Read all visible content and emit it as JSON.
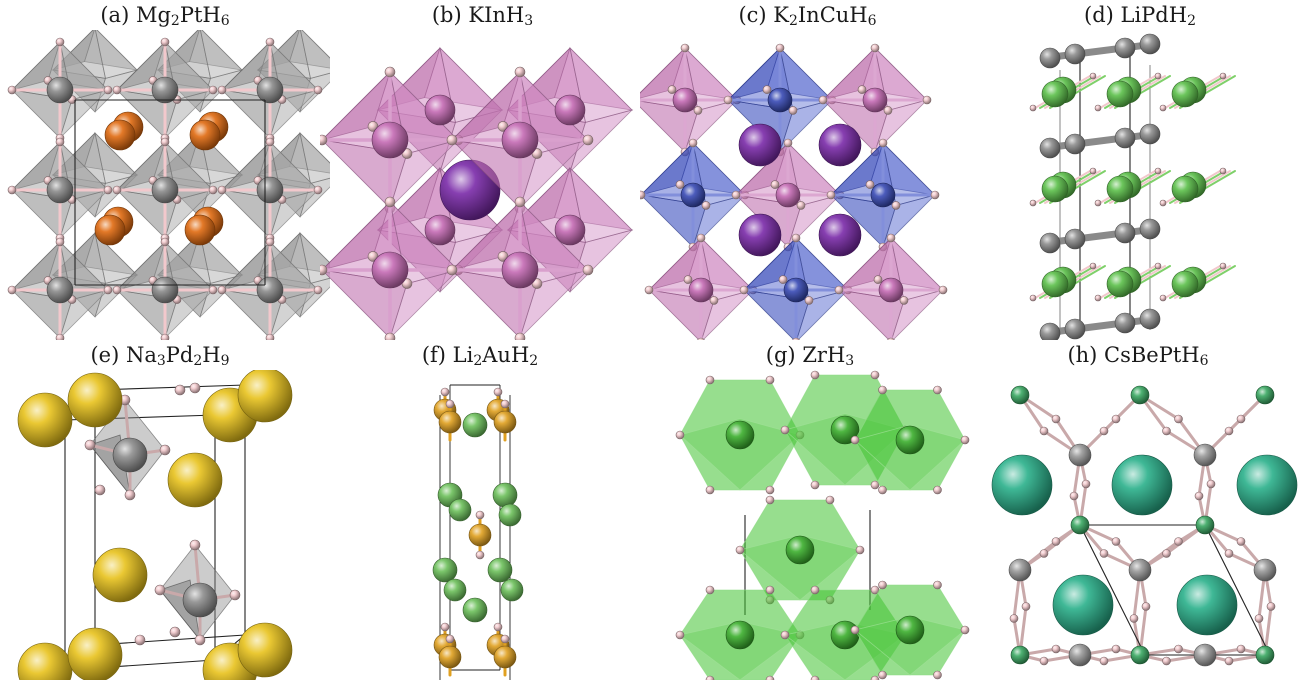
{
  "panels": [
    {
      "id": "a",
      "prefix": "(a) ",
      "parts": [
        [
          "Mg",
          ""
        ],
        [
          "",
          "2"
        ],
        [
          "PtH",
          ""
        ],
        [
          "",
          "6"
        ]
      ],
      "colors": {
        "oct": "#9a9a9a",
        "center": "#8a8a8a",
        "cation": "#e06a10",
        "h": "#f2c8cc"
      }
    },
    {
      "id": "b",
      "prefix": "(b) ",
      "parts": [
        [
          "KInH",
          ""
        ],
        [
          "",
          "3"
        ]
      ],
      "colors": {
        "oct": "#c977b8",
        "center": "#c46ab3",
        "cation": "#7a2aa8",
        "h": "#f2c8cc"
      }
    },
    {
      "id": "c",
      "prefix": "(c) ",
      "parts": [
        [
          "K",
          ""
        ],
        [
          "",
          "2"
        ],
        [
          "InCuH",
          ""
        ],
        [
          "",
          "6"
        ]
      ],
      "colors": {
        "oct": "#c977b8",
        "oct2": "#3e52c8",
        "center": "#c46ab3",
        "cation": "#7a2aa8",
        "h": "#f2c8cc"
      }
    },
    {
      "id": "d",
      "prefix": "(d) ",
      "parts": [
        [
          "LiPdH",
          ""
        ],
        [
          "",
          "2"
        ]
      ],
      "colors": {
        "li": "#5cc04a",
        "pd": "#8e8e8e",
        "h": "#f2c8cc"
      }
    },
    {
      "id": "e",
      "prefix": "(e) ",
      "parts": [
        [
          "Na",
          ""
        ],
        [
          "",
          "3"
        ],
        [
          "Pd",
          ""
        ],
        [
          "",
          "2"
        ],
        [
          "H",
          ""
        ],
        [
          "",
          "9"
        ]
      ],
      "colors": {
        "na": "#e8c21c",
        "pd": "#8e8e8e",
        "h": "#f2c8cc"
      }
    },
    {
      "id": "f",
      "prefix": "(f) ",
      "parts": [
        [
          "Li",
          ""
        ],
        [
          "",
          "2"
        ],
        [
          "AuH",
          ""
        ],
        [
          "",
          "2"
        ]
      ],
      "colors": {
        "li": "#6cc05a",
        "au": "#e0a020",
        "h": "#f2c8cc"
      }
    },
    {
      "id": "g",
      "prefix": "(g) ",
      "parts": [
        [
          "ZrH",
          ""
        ],
        [
          "",
          "3"
        ]
      ],
      "colors": {
        "zr": "#42c232",
        "h": "#f2c8cc"
      }
    },
    {
      "id": "h",
      "prefix": "(h) ",
      "parts": [
        [
          "CsBePtH",
          ""
        ],
        [
          "",
          "6"
        ]
      ],
      "colors": {
        "cs": "#2ab08a",
        "be": "#3aa862",
        "pt": "#9a9a9a",
        "h": "#f2c8cc"
      }
    }
  ]
}
